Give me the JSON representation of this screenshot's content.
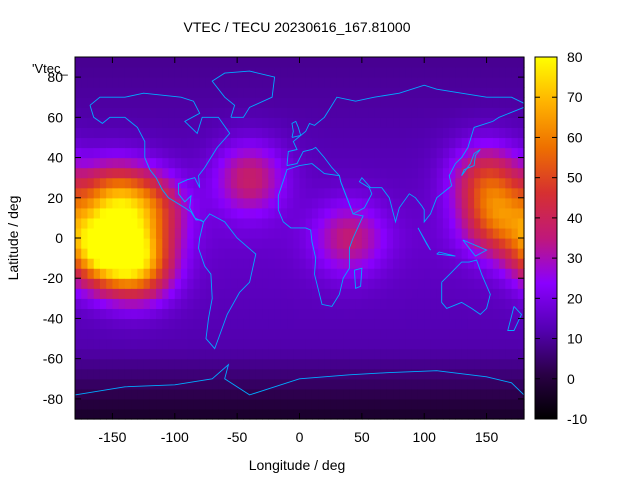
{
  "chart_data": {
    "type": "heatmap",
    "title": "VTEC / TECU 20230616_167.81000",
    "xlabel": "Longitude / deg",
    "ylabel": "Latitude / deg",
    "series_key": "'Vtec_",
    "xlim": [
      -180,
      180
    ],
    "ylim": [
      -90,
      90
    ],
    "xticks": [
      -150,
      -100,
      -50,
      0,
      50,
      100,
      150
    ],
    "yticks": [
      -80,
      -60,
      -40,
      -20,
      0,
      20,
      40,
      60,
      80
    ],
    "colorbar": {
      "min": -10,
      "max": 80,
      "ticks": [
        -10,
        0,
        10,
        20,
        30,
        40,
        50,
        60,
        70,
        80
      ]
    },
    "palette": [
      "#000000",
      "#2a0046",
      "#5500b4",
      "#8a00ff",
      "#c0187a",
      "#d63030",
      "#ee7000",
      "#ffb300",
      "#ffff00"
    ],
    "grid_step_deg": 5,
    "hotspots": [
      {
        "lon": -160,
        "lat": -5,
        "vtec": 72
      },
      {
        "lon": -130,
        "lat": -12,
        "vtec": 68
      },
      {
        "lon": -150,
        "lat": 20,
        "vtec": 55
      },
      {
        "lon": -120,
        "lat": 15,
        "vtec": 48
      },
      {
        "lon": -40,
        "lat": 30,
        "vtec": 40
      },
      {
        "lon": 160,
        "lat": 10,
        "vtec": 52
      },
      {
        "lon": 150,
        "lat": 30,
        "vtec": 45
      },
      {
        "lon": 40,
        "lat": 0,
        "vtec": 36
      }
    ],
    "baseline_vtec": 16
  },
  "map": {
    "coastline_color": "#00aaff"
  }
}
